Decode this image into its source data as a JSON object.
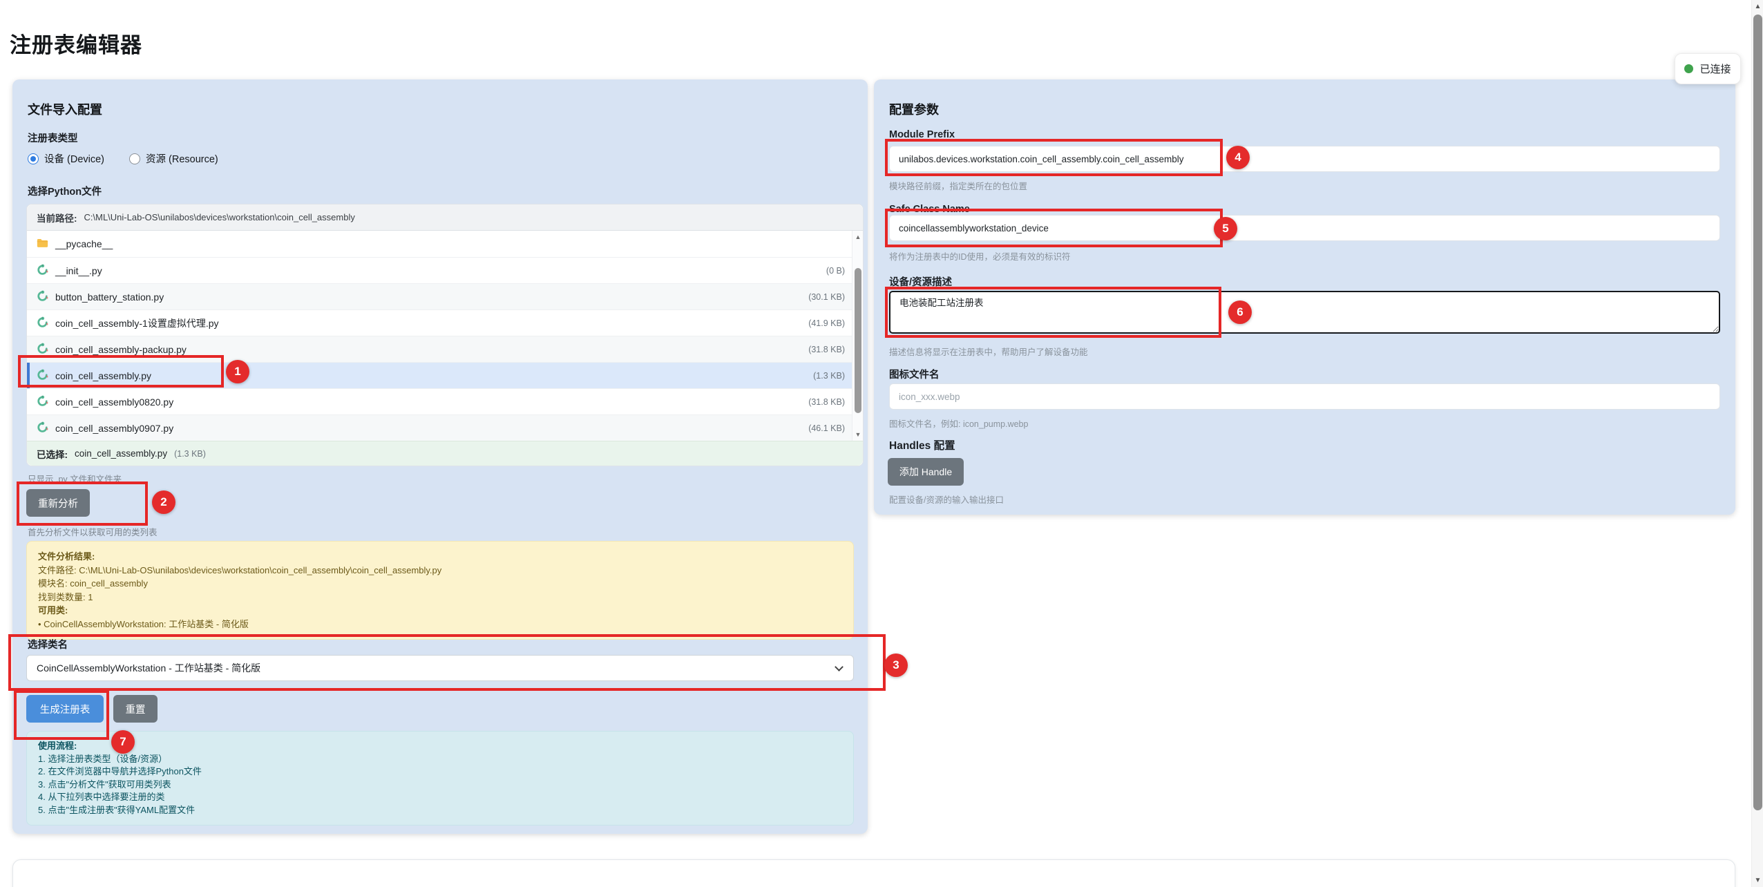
{
  "page": {
    "title": "注册表编辑器"
  },
  "status": {
    "connected_label": "已连接"
  },
  "left_panel": {
    "title": "文件导入配置",
    "registry_type": {
      "label": "注册表类型",
      "options": [
        {
          "label": "设备 (Device)",
          "selected": true
        },
        {
          "label": "资源 (Resource)",
          "selected": false
        }
      ]
    },
    "file_picker": {
      "label": "选择Python文件",
      "current_path_label": "当前路径:",
      "current_path": "C:\\ML\\Uni-Lab-OS\\unilabos\\devices\\workstation\\coin_cell_assembly",
      "files": [
        {
          "name": "__pycache__",
          "type": "folder",
          "size": "",
          "selected": false,
          "stripe": false
        },
        {
          "name": "__init__.py",
          "type": "python",
          "size": "(0 B)",
          "selected": false,
          "stripe": false
        },
        {
          "name": "button_battery_station.py",
          "type": "python",
          "size": "(30.1 KB)",
          "selected": false,
          "stripe": true
        },
        {
          "name": "coin_cell_assembly-1设置虚拟代理.py",
          "type": "python",
          "size": "(41.9 KB)",
          "selected": false,
          "stripe": false
        },
        {
          "name": "coin_cell_assembly-packup.py",
          "type": "python",
          "size": "(31.8 KB)",
          "selected": false,
          "stripe": true
        },
        {
          "name": "coin_cell_assembly.py",
          "type": "python",
          "size": "(1.3 KB)",
          "selected": true,
          "stripe": false
        },
        {
          "name": "coin_cell_assembly0820.py",
          "type": "python",
          "size": "(31.8 KB)",
          "selected": false,
          "stripe": false
        },
        {
          "name": "coin_cell_assembly0907.py",
          "type": "python",
          "size": "(46.1 KB)",
          "selected": false,
          "stripe": true
        }
      ],
      "selected_label": "已选择:",
      "selected_file": "coin_cell_assembly.py",
      "selected_size": "(1.3 KB)",
      "filter_hint": "只显示 .py 文件和文件夹"
    },
    "analyze_button": "重新分析",
    "analyze_hint": "首先分析文件以获取可用的类列表",
    "analysis_result": {
      "lines": [
        {
          "text": "文件分析结果:",
          "bold": true
        },
        {
          "text": "文件路径: C:\\ML\\Uni-Lab-OS\\unilabos\\devices\\workstation\\coin_cell_assembly\\coin_cell_assembly.py",
          "bold": false
        },
        {
          "text": "模块名: coin_cell_assembly",
          "bold": false
        },
        {
          "text": "找到类数量: 1",
          "bold": false
        },
        {
          "text": "可用类:",
          "bold": true
        },
        {
          "text": "• CoinCellAssemblyWorkstation: 工作站基类 - 简化版",
          "bold": false
        }
      ]
    },
    "class_select": {
      "label": "选择类名",
      "value": "CoinCellAssemblyWorkstation - 工作站基类 - 简化版"
    },
    "generate_button": "生成注册表",
    "reset_button": "重置",
    "usage": {
      "title": "使用流程:",
      "steps": [
        "1. 选择注册表类型（设备/资源）",
        "2. 在文件浏览器中导航并选择Python文件",
        "3. 点击\"分析文件\"获取可用类列表",
        "4. 从下拉列表中选择要注册的类",
        "5. 点击\"生成注册表\"获得YAML配置文件"
      ]
    }
  },
  "right_panel": {
    "title": "配置参数",
    "module_prefix": {
      "label": "Module Prefix",
      "value": "unilabos.devices.workstation.coin_cell_assembly.coin_cell_assembly",
      "hint": "模块路径前缀，指定类所在的包位置"
    },
    "safe_class_name": {
      "label": "Safe Class Name",
      "value": "coincellassemblyworkstation_device",
      "hint": "将作为注册表中的ID使用，必须是有效的标识符"
    },
    "description": {
      "label": "设备/资源描述",
      "value": "电池装配工站注册表",
      "hint": "描述信息将显示在注册表中，帮助用户了解设备功能"
    },
    "icon": {
      "label": "图标文件名",
      "placeholder": "icon_xxx.webp",
      "hint": "图标文件名，例如: icon_pump.webp"
    },
    "handles": {
      "label": "Handles 配置",
      "add_button": "添加 Handle",
      "hint": "配置设备/资源的输入输出接口"
    }
  },
  "annotations": {
    "numbers": [
      "1",
      "2",
      "3",
      "4",
      "5",
      "6",
      "7"
    ]
  }
}
